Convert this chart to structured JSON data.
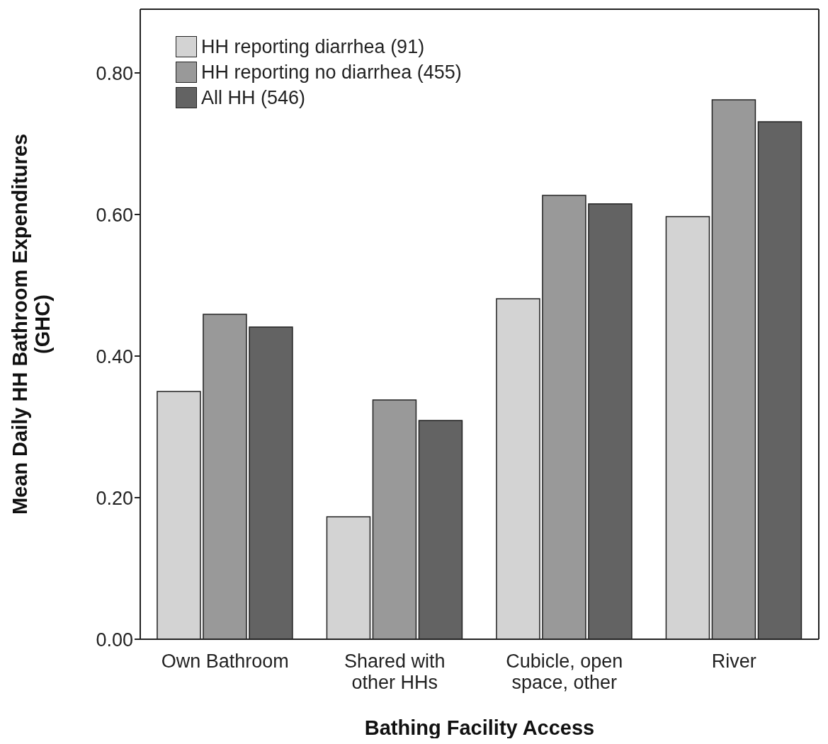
{
  "chart_data": {
    "type": "bar",
    "xlabel": "Bathing Facility Access",
    "ylabel": "Mean Daily HH Bathroom Expenditures (GHC)",
    "categories": [
      "Own Bathroom",
      "Shared with other HHs",
      "Cubicle, open space, other",
      "River"
    ],
    "series": [
      {
        "name": "HH reporting diarrhea (91)",
        "color": "#d3d3d3",
        "values": [
          0.35,
          0.173,
          0.481,
          0.597
        ]
      },
      {
        "name": "HH reporting no diarrhea (455)",
        "color": "#999999",
        "values": [
          0.459,
          0.338,
          0.627,
          0.762
        ]
      },
      {
        "name": "All HH (546)",
        "color": "#636363",
        "values": [
          0.441,
          0.309,
          0.615,
          0.731
        ]
      }
    ],
    "ylim": [
      0,
      0.89
    ],
    "yticks": [
      {
        "value": 0,
        "label": "0.00"
      },
      {
        "value": 0.2,
        "label": "0.20"
      },
      {
        "value": 0.4,
        "label": "0.40"
      },
      {
        "value": 0.6,
        "label": "0.60"
      },
      {
        "value": 0.8,
        "label": "0.80"
      }
    ],
    "grid": false,
    "legend": "top left"
  }
}
